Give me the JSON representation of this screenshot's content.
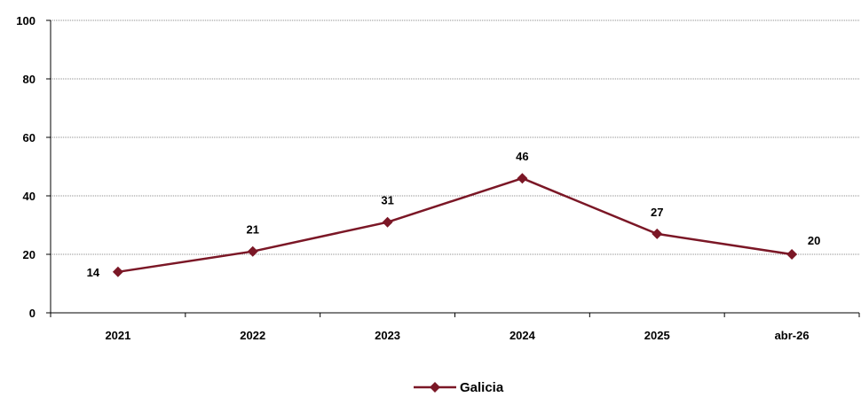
{
  "chart_data": {
    "type": "line",
    "categories": [
      "2021",
      "2022",
      "2023",
      "2024",
      "2025",
      "abr-26"
    ],
    "series": [
      {
        "name": "Galicia",
        "values": [
          14,
          21,
          31,
          46,
          27,
          20
        ],
        "color": "#7b1726"
      }
    ],
    "ylim": [
      0,
      100
    ],
    "yticks": [
      0,
      20,
      40,
      60,
      80,
      100
    ],
    "grid": true,
    "legend": "bottom-center",
    "data_labels": true,
    "marker": "diamond"
  }
}
